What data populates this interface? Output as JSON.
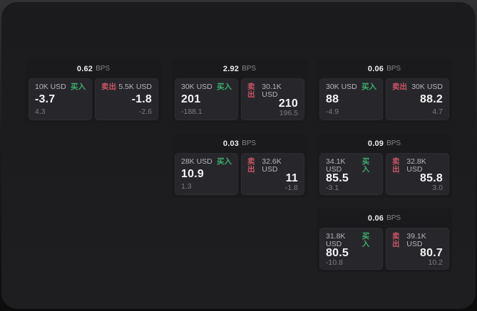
{
  "window": {
    "surface_color": "#1d1d1f",
    "backdrop_top_color": "#323234",
    "backdrop_bottom_color": "#0c0c0d"
  },
  "labels": {
    "bps": "BPS",
    "buy": "买入",
    "sell": "卖出"
  },
  "colors": {
    "buy_green": "#3dae6d",
    "sell_red": "#cd5468",
    "card_bg": "#1a1a1c",
    "panel_bg": "#27272b",
    "price_text": "#f4f4f6",
    "muted_text": "#7b7b82"
  },
  "cards": [
    {
      "bps": "0.62",
      "buy": {
        "amount": "10K USD",
        "price": "-3.7",
        "delta": "4.3"
      },
      "sell": {
        "amount": "5.5K USD",
        "price": "-1.8",
        "delta": "-2.6"
      }
    },
    {
      "bps": "2.92",
      "buy": {
        "amount": "30K USD",
        "price": "201",
        "delta": "-188.1"
      },
      "sell": {
        "amount": "30.1K USD",
        "price": "210",
        "delta": "196.5"
      }
    },
    {
      "bps": "0.06",
      "buy": {
        "amount": "30K USD",
        "price": "88",
        "delta": "-4.9"
      },
      "sell": {
        "amount": "30K USD",
        "price": "88.2",
        "delta": "4.7"
      }
    },
    {
      "bps": "0.03",
      "buy": {
        "amount": "28K USD",
        "price": "10.9",
        "delta": "1.3"
      },
      "sell": {
        "amount": "32.6K USD",
        "price": "11",
        "delta": "-1.8"
      }
    },
    {
      "bps": "0.09",
      "buy": {
        "amount": "34.1K USD",
        "price": "85.5",
        "delta": "-3.1"
      },
      "sell": {
        "amount": "32.8K USD",
        "price": "85.8",
        "delta": "3.0"
      }
    },
    {
      "bps": "0.06",
      "buy": {
        "amount": "31.8K USD",
        "price": "80.5",
        "delta": "-10.8"
      },
      "sell": {
        "amount": "39.1K USD",
        "price": "80.7",
        "delta": "10.2"
      }
    }
  ]
}
